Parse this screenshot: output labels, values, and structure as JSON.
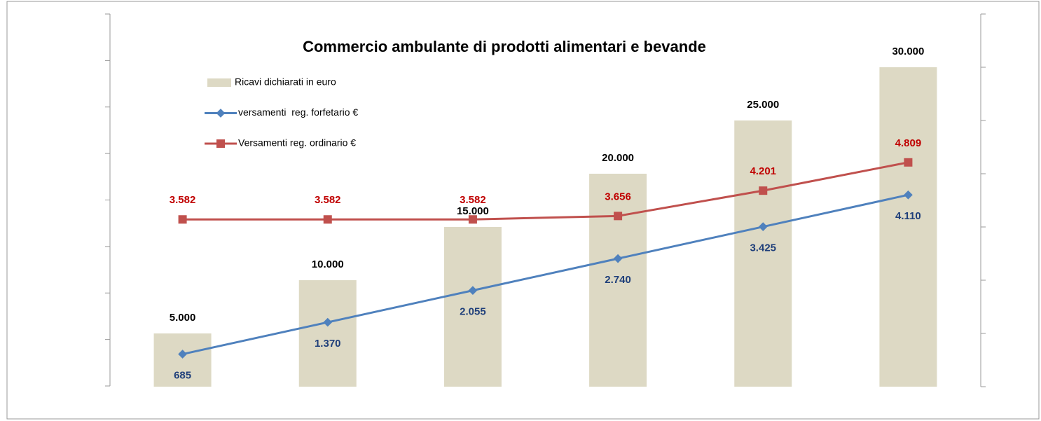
{
  "chart_data": {
    "type": "bar-line",
    "title": "Commercio ambulante di prodotti alimentari e bevande",
    "categories": [
      null,
      null,
      null,
      null,
      null,
      null
    ],
    "ylim": [
      0,
      8000
    ],
    "yticks": [
      0,
      1000,
      2000,
      3000,
      4000,
      5000,
      6000,
      7000,
      8000
    ],
    "y2lim": [
      0,
      35000
    ],
    "y2ticks": [
      0,
      5000,
      10000,
      15000,
      20000,
      25000,
      30000,
      35000
    ],
    "series": [
      {
        "name": "Ricavi dichiarati in euro",
        "type": "bar",
        "axis": "y2",
        "color": "#ddd9c4",
        "values": [
          5000,
          10000,
          15000,
          20000,
          25000,
          30000
        ],
        "value_labels": [
          "5.000",
          "10.000",
          "15.000",
          "20.000",
          "25.000",
          "30.000"
        ]
      },
      {
        "name": "versamenti  reg. forfetario €",
        "type": "line",
        "color": "#4f81bd",
        "label_color": "#1f3f7a",
        "values": [
          685,
          1370,
          2055,
          2740,
          3425,
          4110
        ],
        "value_labels": [
          "685",
          "1.370",
          "2.055",
          "2.740",
          "3.425",
          "4.110"
        ]
      },
      {
        "name": "Versamenti reg. ordinario €",
        "type": "line",
        "color": "#c0504d",
        "label_color": "#c00000",
        "values": [
          3582,
          3582,
          3582,
          3656,
          4201,
          4809
        ],
        "value_labels": [
          "3.582",
          "3.582",
          "3.582",
          "3.656",
          "4.201",
          "4.809"
        ]
      }
    ]
  }
}
